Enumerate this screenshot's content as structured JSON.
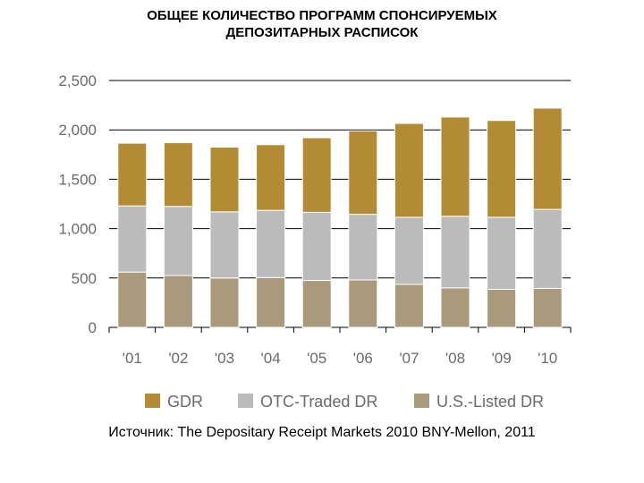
{
  "title_line1": "ОБЩЕЕ КОЛИЧЕСТВО ПРОГРАММ СПОНСИРУЕМЫХ",
  "title_line2": "ДЕПОЗИТАРНЫХ РАСПИСОК",
  "source": "Источник: The Depositary Receipt Markets 2010 BNY-Mellon, 2011",
  "colors": {
    "gdr": "#b38b35",
    "otc": "#bbbbbb",
    "us": "#a99a7c",
    "axis": "#000000",
    "tick_text": "#6a6a6a"
  },
  "chart_data": {
    "type": "bar",
    "stacked": true,
    "categories": [
      "'01",
      "'02",
      "'03",
      "'04",
      "'05",
      "'06",
      "'07",
      "'08",
      "'09",
      "'10"
    ],
    "series": [
      {
        "name": "U.S.-Listed DR",
        "values": [
          560,
          525,
          500,
          505,
          475,
          480,
          435,
          400,
          385,
          395
        ]
      },
      {
        "name": "OTC-Traded DR",
        "values": [
          670,
          700,
          670,
          680,
          690,
          665,
          680,
          725,
          730,
          800
        ]
      },
      {
        "name": "GDR",
        "values": [
          635,
          645,
          655,
          665,
          755,
          845,
          950,
          1005,
          980,
          1025
        ]
      }
    ],
    "legend_order": [
      "GDR",
      "OTC-Traded DR",
      "U.S.-Listed DR"
    ],
    "ylim": [
      0,
      2500
    ],
    "yticks": [
      0,
      500,
      1000,
      1500,
      2000,
      2500
    ],
    "ytick_labels": [
      "0",
      "500",
      "1,000",
      "1,500",
      "2,000",
      "2,500"
    ],
    "grid": true,
    "legend_position": "bottom",
    "xlabel": "",
    "ylabel": ""
  }
}
